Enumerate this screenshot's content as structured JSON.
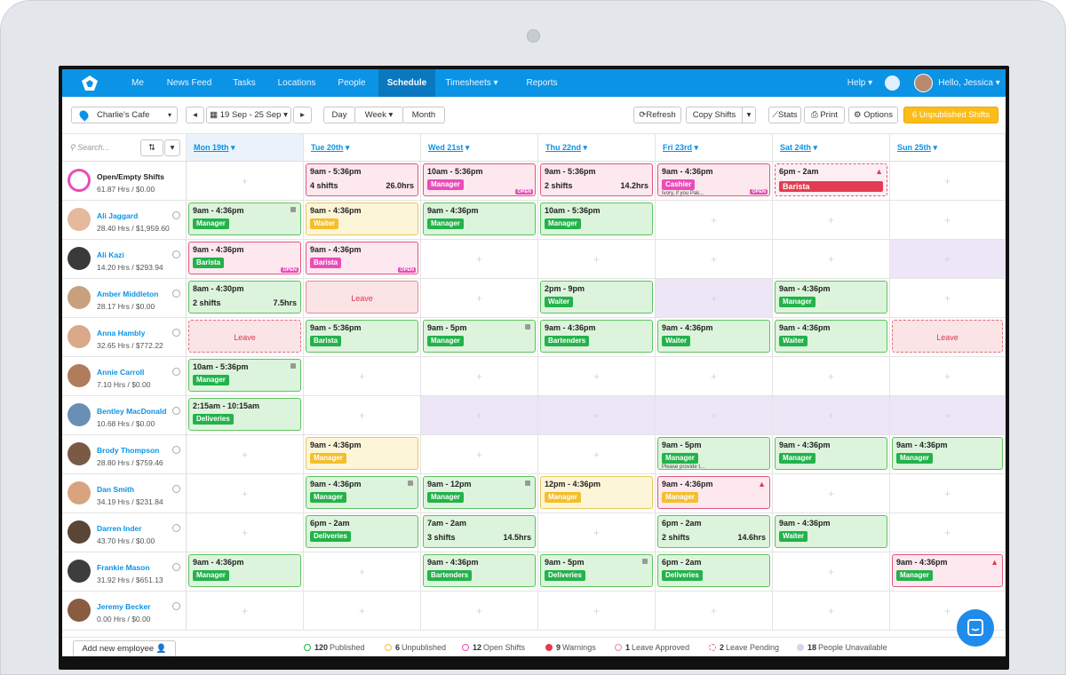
{
  "nav": {
    "items": [
      "Me",
      "News Feed",
      "Tasks",
      "Locations",
      "People",
      "Schedule",
      "Timesheets",
      "Reports"
    ],
    "active": "Schedule",
    "help": "Help",
    "greeting": "Hello, Jessica"
  },
  "toolbar": {
    "location": "Charlie's Cafe",
    "date_range": "19 Sep - 25 Sep",
    "views": [
      "Day",
      "Week",
      "Month"
    ],
    "refresh": "Refresh",
    "copy_shifts": "Copy Shifts",
    "stats": "Stats",
    "print": "Print",
    "options": "Options",
    "unpublished": "6 Unpublished Shifts",
    "search_placeholder": "Search..."
  },
  "days": [
    "Mon 19th",
    "Tue 20th",
    "Wed 21st",
    "Thu 22nd",
    "Fri 23rd",
    "Sat 24th",
    "Sun 25th"
  ],
  "colors": {
    "nav": "#0b93e5",
    "published": "#23b24b",
    "unpublished": "#f5be2a",
    "open": "#ea4cb8",
    "warning": "#e33b50"
  },
  "rows": [
    {
      "name": "Open/Empty Shifts",
      "hours": "61.87 Hrs / $0.00",
      "open": true,
      "shifts": [
        null,
        {
          "kind": "p",
          "time": "9am - 5:36pm",
          "sub": "4 shifts",
          "right": "26.0hrs"
        },
        {
          "kind": "p",
          "time": "10am - 5:36pm",
          "tag": "Manager",
          "tagc": "m",
          "open": "OPEN"
        },
        {
          "kind": "p",
          "time": "9am - 5:36pm",
          "sub": "2 shifts",
          "right": "14.2hrs"
        },
        {
          "kind": "p",
          "time": "9am - 4:36pm",
          "tag": "Cashier",
          "tagc": "m",
          "note": "Ivory, if you Pak...",
          "open": "OPEN"
        },
        {
          "kind": "openp",
          "time": "6pm - 2am",
          "tag": "Barista",
          "tagc": "r",
          "warn": true
        },
        null
      ]
    },
    {
      "name": "Ali Jaggard",
      "hours": "28.40 Hrs / $1,959.60",
      "shifts": [
        {
          "kind": "g",
          "time": "9am - 4:36pm",
          "tag": "Manager",
          "tagc": "g",
          "lock": true
        },
        {
          "kind": "y",
          "time": "9am - 4:36pm",
          "tag": "Waiter",
          "tagc": "y"
        },
        {
          "kind": "g",
          "time": "9am - 4:36pm",
          "tag": "Manager",
          "tagc": "g"
        },
        {
          "kind": "g",
          "time": "10am - 5:36pm",
          "tag": "Manager",
          "tagc": "g"
        },
        null,
        null,
        null
      ]
    },
    {
      "name": "Ali Kazi",
      "hours": "14.20 Hrs / $293.94",
      "shifts": [
        {
          "kind": "p",
          "time": "9am - 4:36pm",
          "tag": "Barista",
          "tagc": "g",
          "open": "OPEN"
        },
        {
          "kind": "p",
          "time": "9am - 4:36pm",
          "tag": "Barista",
          "tagc": "m",
          "open": "OPEN"
        },
        null,
        null,
        null,
        null,
        "unav"
      ]
    },
    {
      "name": "Amber Middleton",
      "hours": "28.17 Hrs / $0.00",
      "shifts": [
        {
          "kind": "g",
          "time": "8am - 4:30pm",
          "sub": "2 shifts",
          "right": "7.5hrs"
        },
        {
          "kind": "leave",
          "label": "Leave"
        },
        null,
        {
          "kind": "g",
          "time": "2pm - 9pm",
          "tag": "Waiter",
          "tagc": "g"
        },
        "unav",
        {
          "kind": "g",
          "time": "9am - 4:36pm",
          "tag": "Manager",
          "tagc": "g"
        },
        null
      ]
    },
    {
      "name": "Anna Hambly",
      "hours": "32.65 Hrs / $772.22",
      "shifts": [
        {
          "kind": "leavep",
          "label": "Leave"
        },
        {
          "kind": "g",
          "time": "9am - 5:36pm",
          "tag": "Barista",
          "tagc": "g"
        },
        {
          "kind": "g",
          "time": "9am - 5pm",
          "tag": "Manager",
          "tagc": "g",
          "lock": true
        },
        {
          "kind": "g",
          "time": "9am - 4:36pm",
          "tag": "Bartenders",
          "tagc": "g"
        },
        {
          "kind": "g",
          "time": "9am - 4:36pm",
          "tag": "Waiter",
          "tagc": "g"
        },
        {
          "kind": "g",
          "time": "9am - 4:36pm",
          "tag": "Waiter",
          "tagc": "g"
        },
        {
          "kind": "leavep",
          "label": "Leave"
        }
      ]
    },
    {
      "name": "Annie Carroll",
      "hours": "7.10 Hrs / $0.00",
      "shifts": [
        {
          "kind": "g",
          "time": "10am - 5:36pm",
          "tag": "Manager",
          "tagc": "g",
          "lock": true
        },
        null,
        null,
        null,
        null,
        null,
        null
      ]
    },
    {
      "name": "Bentley MacDonald",
      "hours": "10.68 Hrs / $0.00",
      "shifts": [
        {
          "kind": "g",
          "time": "2:15am - 10:15am",
          "tag": "Deliveries",
          "tagc": "g"
        },
        null,
        "unav",
        "unav",
        "unav",
        "unav",
        "unav"
      ]
    },
    {
      "name": "Brody Thompson",
      "hours": "28.80 Hrs / $759.46",
      "shifts": [
        null,
        {
          "kind": "y",
          "time": "9am - 4:36pm",
          "tag": "Manager",
          "tagc": "y"
        },
        null,
        null,
        {
          "kind": "g",
          "time": "9am - 5pm",
          "tag": "Manager",
          "tagc": "g",
          "note": "Please provide t..."
        },
        {
          "kind": "g",
          "time": "9am - 4:36pm",
          "tag": "Manager",
          "tagc": "g"
        },
        {
          "kind": "g",
          "time": "9am - 4:36pm",
          "tag": "Manager",
          "tagc": "g"
        }
      ]
    },
    {
      "name": "Dan Smith",
      "hours": "34.19 Hrs / $231.84",
      "shifts": [
        null,
        {
          "kind": "g",
          "time": "9am - 4:36pm",
          "tag": "Manager",
          "tagc": "g",
          "lock": true
        },
        {
          "kind": "g",
          "time": "9am - 12pm",
          "tag": "Manager",
          "tagc": "g",
          "lock": true
        },
        {
          "kind": "y",
          "time": "12pm - 4:36pm",
          "tag": "Manager",
          "tagc": "y"
        },
        {
          "kind": "p",
          "time": "9am - 4:36pm",
          "tag": "Manager",
          "tagc": "y",
          "warn": true
        },
        null,
        null
      ]
    },
    {
      "name": "Darren Inder",
      "hours": "43.70 Hrs / $0.00",
      "shifts": [
        null,
        {
          "kind": "g",
          "time": "6pm - 2am",
          "tag": "Deliveries",
          "tagc": "g"
        },
        {
          "kind": "g",
          "time": "7am - 2am",
          "sub": "3 shifts",
          "right": "14.5hrs"
        },
        null,
        {
          "kind": "g",
          "time": "6pm - 2am",
          "sub": "2 shifts",
          "right": "14.6hrs"
        },
        {
          "kind": "g",
          "time": "9am - 4:36pm",
          "tag": "Waiter",
          "tagc": "g"
        },
        null
      ]
    },
    {
      "name": "Frankie Mason",
      "hours": "31.92 Hrs / $651.13",
      "shifts": [
        {
          "kind": "g",
          "time": "9am - 4:36pm",
          "tag": "Manager",
          "tagc": "g"
        },
        null,
        {
          "kind": "g",
          "time": "9am - 4:36pm",
          "tag": "Bartenders",
          "tagc": "g"
        },
        {
          "kind": "g",
          "time": "9am - 5pm",
          "tag": "Deliveries",
          "tagc": "g",
          "lock": true
        },
        {
          "kind": "g",
          "time": "6pm - 2am",
          "tag": "Deliveries",
          "tagc": "g"
        },
        null,
        {
          "kind": "p",
          "time": "9am - 4:36pm",
          "tag": "Manager",
          "tagc": "g",
          "warn": true
        }
      ]
    },
    {
      "name": "Jeremy Becker",
      "hours": "0.00 Hrs / $0.00",
      "shifts": [
        null,
        null,
        null,
        null,
        null,
        null,
        null
      ]
    }
  ],
  "footer": {
    "add_employee": "Add new employee",
    "legend": [
      {
        "count": "120",
        "label": "Published",
        "color": "#23b24b"
      },
      {
        "count": "6",
        "label": "Unpublished",
        "color": "#f5be2a"
      },
      {
        "count": "12",
        "label": "Open Shifts",
        "color": "#ea4cb8"
      },
      {
        "count": "9",
        "label": "Warnings",
        "color": "#e33b50"
      },
      {
        "count": "1",
        "label": "Leave Approved",
        "color": "#e68a95"
      },
      {
        "count": "2",
        "label": "Leave Pending",
        "color": "#e06c78"
      },
      {
        "count": "18",
        "label": "People Unavailable",
        "color": "#d9d2ea"
      }
    ]
  }
}
